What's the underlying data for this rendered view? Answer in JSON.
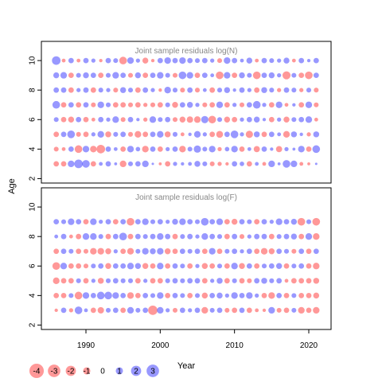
{
  "chart_data": {
    "type": "scatter",
    "subtype": "bubble-residuals",
    "ylabel": "Age",
    "xlabel": "Year",
    "x_ticks": [
      "1990",
      "2000",
      "2010",
      "2020"
    ],
    "y_ticks": [
      "2",
      "4",
      "6",
      "8",
      "10"
    ],
    "xlim": [
      1984,
      2023
    ],
    "ylim": [
      1.7,
      11.3
    ],
    "years": [
      1986,
      2021
    ],
    "colors": {
      "positive": "#4444ff",
      "negative": "#ff4444"
    },
    "legend": {
      "placement": "bottom-left",
      "entries": [
        {
          "value": -4,
          "label": "-4"
        },
        {
          "value": -3,
          "label": "-3"
        },
        {
          "value": -2,
          "label": "-2"
        },
        {
          "value": -1,
          "label": "-1"
        },
        {
          "value": 0,
          "label": "0"
        },
        {
          "value": 1,
          "label": "1"
        },
        {
          "value": 2,
          "label": "2"
        },
        {
          "value": 3,
          "label": "3"
        }
      ]
    },
    "panels": [
      {
        "title": "Joint sample residuals log(N)",
        "ages": [
          3,
          4,
          5,
          6,
          7,
          8,
          9,
          10
        ],
        "residuals": [
          [
            -1.0,
            -1.0,
            1.5,
            2.5,
            2.0,
            -1.0,
            0.5,
            1.0,
            0.3,
            -1.5,
            0.8,
            1.0,
            1.5,
            0.2,
            -0.3,
            -1.0,
            0.6,
            0.4,
            0.5,
            1.2,
            0.8,
            -0.8,
            -0.6,
            -0.4,
            1.0,
            0.7,
            -1.0,
            0.5,
            -0.5,
            1.5,
            0.3,
            2.0,
            1.5,
            -0.5,
            -0.3,
            0.2
          ],
          [
            -0.8,
            -0.5,
            1.0,
            -2.0,
            1.5,
            -1.5,
            -2.5,
            1.0,
            0.5,
            -1.0,
            1.5,
            0.7,
            -1.5,
            1.0,
            -1.0,
            0.6,
            1.0,
            -1.5,
            0.8,
            1.8,
            0.8,
            1.5,
            -0.6,
            0.7,
            1.5,
            -1.0,
            0.5,
            -1.3,
            1.0,
            0.4,
            -1.3,
            0.6,
            0.3,
            1.5,
            -1.0,
            2.0
          ],
          [
            -1.0,
            1.0,
            2.0,
            -0.8,
            -1.0,
            0.6,
            1.5,
            -1.2,
            0.8,
            1.0,
            -0.8,
            -1.5,
            -1.0,
            1.0,
            1.5,
            -1.2,
            0.8,
            -0.5,
            0.4,
            1.5,
            0.6,
            -1.0,
            -1.6,
            1.0,
            2.0,
            0.6,
            -1.8,
            1.2,
            -1.0,
            1.0,
            0.5,
            -1.5,
            1.2,
            0.4,
            -0.6,
            1.2
          ],
          [
            0.8,
            -1.0,
            -1.2,
            1.0,
            -1.0,
            -0.5,
            1.0,
            0.6,
            1.5,
            -0.8,
            1.0,
            0.4,
            -0.6,
            1.5,
            0.8,
            1.0,
            -0.8,
            -1.2,
            -1.4,
            -1.5,
            1.8,
            -2.0,
            0.8,
            -1.2,
            -1.0,
            0.6,
            1.0,
            1.2,
            0.4,
            -1.0,
            0.6,
            -1.2,
            0.8,
            1.0,
            1.5,
            -0.5
          ],
          [
            2.0,
            -1.0,
            1.0,
            -1.0,
            1.0,
            -0.8,
            1.5,
            0.8,
            -1.0,
            -1.0,
            -0.8,
            -1.0,
            -0.6,
            -0.8,
            -1.0,
            0.8,
            -1.2,
            1.0,
            1.2,
            0.6,
            -0.8,
            -1.0,
            1.5,
            -1.0,
            0.6,
            -0.8,
            1.0,
            2.0,
            0.6,
            -1.0,
            1.5,
            -0.5,
            0.4,
            -1.0,
            1.5,
            -0.8
          ],
          [
            1.0,
            1.0,
            -1.0,
            0.6,
            1.0,
            -1.0,
            0.8,
            0.6,
            -0.8,
            1.2,
            0.8,
            -1.0,
            1.0,
            0.6,
            -0.4,
            1.5,
            0.8,
            -0.8,
            1.0,
            -0.8,
            0.5,
            -1.0,
            0.8,
            1.2,
            0.4,
            1.0,
            0.6,
            -1.0,
            1.2,
            0.8,
            -0.6,
            1.0,
            0.8,
            -0.6,
            0.8,
            -0.8
          ],
          [
            1.2,
            1.5,
            -1.0,
            0.8,
            1.2,
            1.0,
            -1.0,
            0.8,
            1.5,
            1.0,
            -0.8,
            1.2,
            -1.0,
            1.0,
            1.5,
            0.8,
            -0.8,
            2.0,
            1.5,
            -1.0,
            1.0,
            0.5,
            -2.0,
            1.5,
            -1.0,
            1.2,
            0.8,
            -2.0,
            1.0,
            1.2,
            0.6,
            -2.2,
            0.8,
            -1.0,
            -2.0,
            1.0
          ],
          [
            2.5,
            -0.5,
            1.0,
            -0.5,
            1.0,
            0.6,
            -0.4,
            1.0,
            0.8,
            -2.0,
            1.5,
            0.6,
            -1.2,
            -0.4,
            1.0,
            1.5,
            1.0,
            1.5,
            1.0,
            0.8,
            1.0,
            0.6,
            -0.8,
            1.5,
            1.0,
            0.5,
            1.2,
            -0.5,
            1.0,
            0.8,
            0.6,
            1.2,
            -0.5,
            1.0,
            0.4,
            1.0
          ]
        ]
      },
      {
        "title": "Joint sample residuals log(F)",
        "ages": [
          3,
          4,
          5,
          6,
          7,
          8,
          9
        ],
        "residuals": [
          [
            -0.4,
            1.0,
            -0.6,
            2.0,
            0.5,
            -1.0,
            -1.4,
            0.8,
            1.0,
            -1.0,
            1.5,
            0.8,
            1.0,
            -3.0,
            1.5,
            0.6,
            -0.8,
            1.0,
            0.6,
            1.0,
            -1.5,
            0.8,
            1.0,
            -0.8,
            -1.0,
            1.0,
            -1.0,
            -0.5,
            -0.4,
            1.5,
            -0.8,
            -1.0,
            0.8,
            -1.5,
            -1.0,
            -1.5
          ],
          [
            -1.0,
            -1.0,
            0.8,
            -2.0,
            1.5,
            1.0,
            2.0,
            2.0,
            1.5,
            1.0,
            -1.5,
            -1.0,
            1.0,
            0.8,
            1.5,
            -1.0,
            1.0,
            0.8,
            -1.0,
            0.8,
            -1.2,
            1.0,
            1.2,
            0.6,
            1.5,
            1.0,
            1.5,
            0.6,
            -1.0,
            -1.5,
            1.0,
            -1.0,
            0.8,
            -1.0,
            -1.0,
            -1.2
          ],
          [
            -1.5,
            -1.0,
            -1.0,
            0.8,
            -1.0,
            0.6,
            -1.2,
            0.8,
            1.0,
            0.8,
            0.8,
            -1.0,
            0.6,
            -1.0,
            -1.0,
            0.8,
            1.0,
            0.8,
            1.0,
            1.0,
            -1.0,
            0.6,
            1.2,
            -1.0,
            0.8,
            -1.0,
            -0.8,
            1.0,
            1.2,
            0.8,
            1.0,
            -0.5,
            -1.0,
            -1.0,
            -1.0,
            -1.2
          ],
          [
            -2.0,
            1.5,
            -1.0,
            -1.0,
            -0.8,
            0.8,
            1.0,
            -1.2,
            1.0,
            1.0,
            1.5,
            1.2,
            -1.2,
            -1.0,
            1.5,
            -1.0,
            1.0,
            0.8,
            -1.0,
            0.6,
            -1.2,
            -1.0,
            0.8,
            -1.0,
            1.5,
            -1.2,
            1.0,
            -1.0,
            0.8,
            1.0,
            1.2,
            -1.0,
            0.8,
            1.0,
            -1.0,
            -1.5
          ],
          [
            -1.0,
            1.0,
            0.8,
            -1.0,
            -0.8,
            -1.5,
            -1.5,
            -1.2,
            0.6,
            -1.0,
            -1.5,
            0.8,
            1.5,
            1.2,
            1.5,
            -1.2,
            -1.0,
            1.0,
            0.8,
            1.0,
            -1.0,
            1.5,
            -1.0,
            0.8,
            1.0,
            0.6,
            1.0,
            -1.0,
            -1.5,
            -1.2,
            1.0,
            0.8,
            -0.8,
            1.0,
            -1.0,
            1.0
          ],
          [
            0.5,
            1.0,
            -0.5,
            -1.0,
            1.5,
            1.5,
            0.8,
            -1.0,
            1.0,
            2.0,
            -1.0,
            1.0,
            0.8,
            1.0,
            1.5,
            1.0,
            -1.0,
            0.8,
            1.0,
            0.6,
            1.5,
            1.0,
            0.8,
            -1.0,
            1.0,
            -0.8,
            0.6,
            1.0,
            1.0,
            -1.0,
            0.8,
            1.0,
            1.2,
            -1.0,
            1.5,
            -1.5
          ],
          [
            1.0,
            0.8,
            1.5,
            1.0,
            -1.0,
            1.5,
            0.6,
            1.0,
            -1.0,
            1.0,
            -2.0,
            1.0,
            1.5,
            0.8,
            1.0,
            0.6,
            1.2,
            1.5,
            1.0,
            0.8,
            2.0,
            1.0,
            1.5,
            -1.0,
            -1.2,
            1.0,
            0.8,
            -1.0,
            1.0,
            0.6,
            1.5,
            1.0,
            1.2,
            -2.0,
            0.8,
            -2.0
          ]
        ]
      }
    ]
  }
}
